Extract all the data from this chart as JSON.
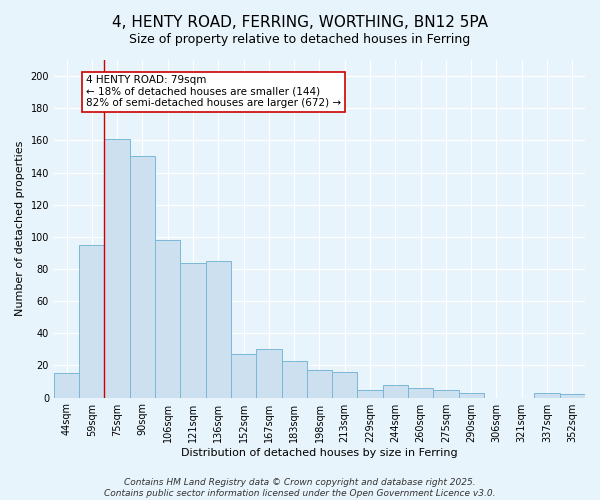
{
  "title": "4, HENTY ROAD, FERRING, WORTHING, BN12 5PA",
  "subtitle": "Size of property relative to detached houses in Ferring",
  "xlabel": "Distribution of detached houses by size in Ferring",
  "ylabel": "Number of detached properties",
  "categories": [
    "44sqm",
    "59sqm",
    "75sqm",
    "90sqm",
    "106sqm",
    "121sqm",
    "136sqm",
    "152sqm",
    "167sqm",
    "183sqm",
    "198sqm",
    "213sqm",
    "229sqm",
    "244sqm",
    "260sqm",
    "275sqm",
    "290sqm",
    "306sqm",
    "321sqm",
    "337sqm",
    "352sqm"
  ],
  "values": [
    15,
    95,
    161,
    150,
    98,
    84,
    85,
    27,
    30,
    23,
    17,
    16,
    5,
    8,
    6,
    5,
    3,
    0,
    0,
    3,
    2
  ],
  "bar_color": "#cce0f0",
  "bar_edge_color": "#7ab8d8",
  "bar_width": 1.0,
  "vline_index": 2,
  "vline_color": "#cc0000",
  "annotation_text": "4 HENTY ROAD: 79sqm\n← 18% of detached houses are smaller (144)\n82% of semi-detached houses are larger (672) →",
  "annotation_box_color": "#ffffff",
  "annotation_box_edge_color": "#cc0000",
  "ylim": [
    0,
    210
  ],
  "yticks": [
    0,
    20,
    40,
    60,
    80,
    100,
    120,
    140,
    160,
    180,
    200
  ],
  "background_color": "#e8f4fb",
  "plot_bg_color": "#e8f4fb",
  "footer_line1": "Contains HM Land Registry data © Crown copyright and database right 2025.",
  "footer_line2": "Contains public sector information licensed under the Open Government Licence v3.0.",
  "title_fontsize": 11,
  "subtitle_fontsize": 9,
  "annotation_fontsize": 7.5,
  "footer_fontsize": 6.5,
  "xlabel_fontsize": 8,
  "ylabel_fontsize": 8,
  "tick_fontsize": 7
}
